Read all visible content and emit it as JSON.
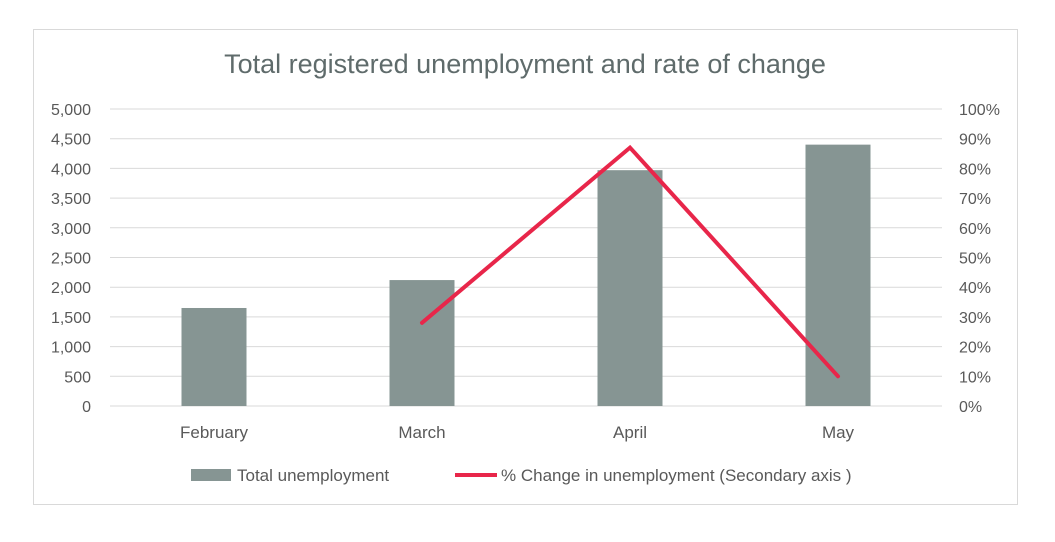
{
  "chart_data": {
    "type": "bar+line",
    "title": "Total registered unemployment and rate of change",
    "categories": [
      "February",
      "March",
      "April",
      "May"
    ],
    "series": [
      {
        "name": "Total unemployment",
        "type": "bar",
        "axis": "primary",
        "values": [
          1650,
          2120,
          3970,
          4400
        ],
        "color": "#869593"
      },
      {
        "name": "% Change in unemployment (Secondary axis )",
        "type": "line",
        "axis": "secondary",
        "values": [
          null,
          28,
          87,
          10
        ],
        "color": "#e8264a"
      }
    ],
    "y_primary": {
      "min": 0,
      "max": 5000,
      "step": 500,
      "tick_labels": [
        "0",
        "500",
        "1,000",
        "1,500",
        "2,000",
        "2,500",
        "3,000",
        "3,500",
        "4,000",
        "4,500",
        "5,000"
      ]
    },
    "y_secondary": {
      "min": 0,
      "max": 100,
      "step": 10,
      "tick_labels": [
        "0%",
        "10%",
        "20%",
        "30%",
        "40%",
        "50%",
        "60%",
        "70%",
        "80%",
        "90%",
        "100%"
      ]
    },
    "grid": true,
    "gridline_color": "#d9d9d9",
    "legend_position": "bottom",
    "legend": [
      {
        "label": "Total unemployment",
        "marker": "square",
        "color": "#869593"
      },
      {
        "label": "% Change in unemployment (Secondary axis )",
        "marker": "line",
        "color": "#e8264a"
      }
    ]
  }
}
